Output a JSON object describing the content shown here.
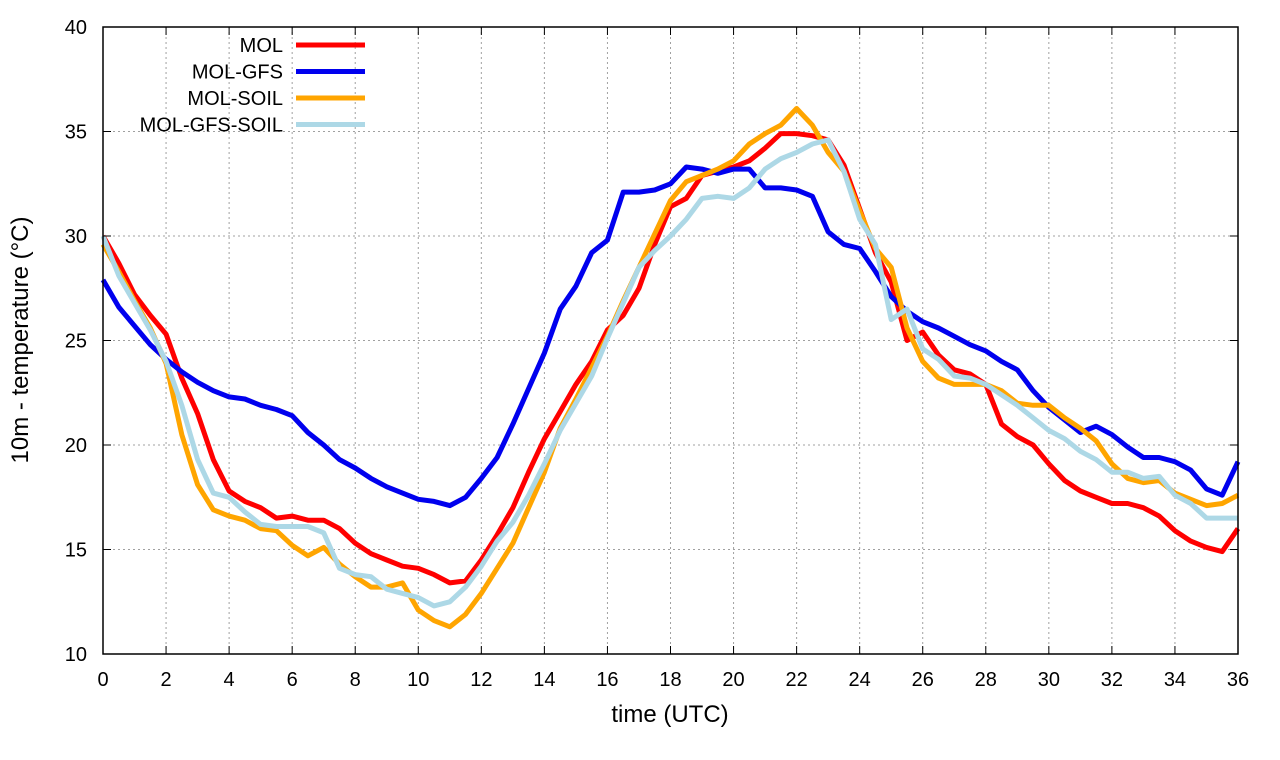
{
  "chart_data": {
    "type": "line",
    "xlabel": "time (UTC)",
    "ylabel": "10m - temperature (°C)",
    "xlim": [
      0,
      36
    ],
    "ylim": [
      10,
      40
    ],
    "xticks": [
      "0",
      "2",
      "4",
      "6",
      "8",
      "10",
      "12",
      "14",
      "16",
      "18",
      "20",
      "22",
      "24",
      "26",
      "28",
      "30",
      "32",
      "34",
      "36"
    ],
    "yticks": [
      "10",
      "15",
      "20",
      "25",
      "30",
      "35",
      "40"
    ],
    "grid": true,
    "legend_position": "top-left",
    "series": [
      {
        "name": "MOL",
        "color": "#ff0000",
        "x": [
          0,
          0.5,
          1,
          1.5,
          2,
          2.5,
          3,
          3.5,
          4,
          4.5,
          5,
          5.5,
          6,
          6.5,
          7,
          7.5,
          8,
          8.5,
          9,
          9.5,
          10,
          10.5,
          11,
          11.5,
          12,
          12.5,
          13,
          13.5,
          14,
          14.5,
          15,
          15.5,
          16,
          16.5,
          17,
          17.5,
          18,
          18.5,
          19,
          19.5,
          20,
          20.5,
          21,
          21.5,
          22,
          22.5,
          23,
          23.5,
          24,
          24.5,
          25,
          25.5,
          26,
          26.5,
          27,
          27.5,
          28,
          28.5,
          29,
          29.5,
          30,
          30.5,
          31,
          31.5,
          32,
          32.5,
          33,
          33.5,
          34,
          34.5,
          35,
          35.5,
          36
        ],
        "y": [
          30,
          28.7,
          27.2,
          26.2,
          25.3,
          23.2,
          21.5,
          19.3,
          17.8,
          17.3,
          17,
          16.5,
          16.6,
          16.4,
          16.4,
          16,
          15.3,
          14.8,
          14.5,
          14.2,
          14.1,
          13.8,
          13.4,
          13.5,
          14.5,
          15.7,
          17,
          18.7,
          20.3,
          21.6,
          22.9,
          24,
          25.5,
          26.2,
          27.5,
          29.6,
          31.4,
          31.8,
          32.9,
          33.1,
          33.3,
          33.6,
          34.2,
          34.9,
          34.9,
          34.8,
          34.6,
          33.4,
          31.3,
          29.2,
          27.8,
          25,
          25.4,
          24.3,
          23.6,
          23.4,
          22.9,
          21,
          20.4,
          20,
          19.1,
          18.3,
          17.8,
          17.5,
          17.2,
          17.2,
          17,
          16.6,
          15.9,
          15.4,
          15.1,
          14.9,
          16
        ]
      },
      {
        "name": "MOL-GFS",
        "color": "#0000ee",
        "x": [
          0,
          0.5,
          1,
          1.5,
          2,
          2.5,
          3,
          3.5,
          4,
          4.5,
          5,
          5.5,
          6,
          6.5,
          7,
          7.5,
          8,
          8.5,
          9,
          9.5,
          10,
          10.5,
          11,
          11.5,
          12,
          12.5,
          13,
          13.5,
          14,
          14.5,
          15,
          15.5,
          16,
          16.5,
          17,
          17.5,
          18,
          18.5,
          19,
          19.5,
          20,
          20.5,
          21,
          21.5,
          22,
          22.5,
          23,
          23.5,
          24,
          24.5,
          25,
          25.5,
          26,
          26.5,
          27,
          27.5,
          28,
          28.5,
          29,
          29.5,
          30,
          30.5,
          31,
          31.5,
          32,
          32.5,
          33,
          33.5,
          34,
          34.5,
          35,
          35.5,
          36
        ],
        "y": [
          27.9,
          26.6,
          25.7,
          24.8,
          24.1,
          23.5,
          23,
          22.6,
          22.3,
          22.2,
          21.9,
          21.7,
          21.4,
          20.6,
          20,
          19.3,
          18.9,
          18.4,
          18,
          17.7,
          17.4,
          17.3,
          17.1,
          17.5,
          18.4,
          19.4,
          21,
          22.7,
          24.4,
          26.5,
          27.6,
          29.2,
          29.8,
          32.1,
          32.1,
          32.2,
          32.5,
          33.3,
          33.2,
          33,
          33.2,
          33.2,
          32.3,
          32.3,
          32.2,
          31.9,
          30.2,
          29.6,
          29.4,
          28.3,
          27.1,
          26.4,
          25.9,
          25.6,
          25.2,
          24.8,
          24.5,
          24,
          23.6,
          22.6,
          21.8,
          21.2,
          20.6,
          20.9,
          20.5,
          19.9,
          19.4,
          19.4,
          19.2,
          18.8,
          17.9,
          17.6,
          19.2
        ]
      },
      {
        "name": "MOL-SOIL",
        "color": "#ffa500",
        "x": [
          0,
          0.5,
          1,
          1.5,
          2,
          2.5,
          3,
          3.5,
          4,
          4.5,
          5,
          5.5,
          6,
          6.5,
          7,
          7.5,
          8,
          8.5,
          9,
          9.5,
          10,
          10.5,
          11,
          11.5,
          12,
          12.5,
          13,
          13.5,
          14,
          14.5,
          15,
          15.5,
          16,
          16.5,
          17,
          17.5,
          18,
          18.5,
          19,
          19.5,
          20,
          20.5,
          21,
          21.5,
          22,
          22.5,
          23,
          23.5,
          24,
          24.5,
          25,
          25.5,
          26,
          26.5,
          27,
          27.5,
          28,
          28.5,
          29,
          29.5,
          30,
          30.5,
          31,
          31.5,
          32,
          32.5,
          33,
          33.5,
          34,
          34.5,
          35,
          35.5,
          36
        ],
        "y": [
          29.6,
          28.3,
          26.9,
          25.6,
          23.9,
          20.5,
          18.1,
          16.9,
          16.6,
          16.4,
          16,
          15.9,
          15.2,
          14.7,
          15.1,
          14.3,
          13.7,
          13.2,
          13.2,
          13.4,
          12.1,
          11.6,
          11.3,
          11.9,
          12.9,
          14.1,
          15.3,
          17,
          18.7,
          20.8,
          22.2,
          23.7,
          25.2,
          26.9,
          28.5,
          30.1,
          31.7,
          32.6,
          32.9,
          33.2,
          33.6,
          34.4,
          34.9,
          35.3,
          36.1,
          35.3,
          34,
          33.1,
          31.2,
          29.4,
          28.5,
          25.6,
          24,
          23.2,
          22.9,
          22.9,
          22.9,
          22.6,
          22,
          21.9,
          21.9,
          21.3,
          20.8,
          20.2,
          19.1,
          18.4,
          18.2,
          18.3,
          17.7,
          17.4,
          17.1,
          17.2,
          17.6
        ]
      },
      {
        "name": "MOL-GFS-SOIL",
        "color": "#add8e6",
        "x": [
          0,
          0.5,
          1,
          1.5,
          2,
          2.5,
          3,
          3.5,
          4,
          4.5,
          5,
          5.5,
          6,
          6.5,
          7,
          7.5,
          8,
          8.5,
          9,
          9.5,
          10,
          10.5,
          11,
          11.5,
          12,
          12.5,
          13,
          13.5,
          14,
          14.5,
          15,
          15.5,
          16,
          16.5,
          17,
          17.5,
          18,
          18.5,
          19,
          19.5,
          20,
          20.5,
          21,
          21.5,
          22,
          22.5,
          23,
          23.5,
          24,
          24.5,
          25,
          25.5,
          26,
          26.5,
          27,
          27.5,
          28,
          28.5,
          29,
          29.5,
          30,
          30.5,
          31,
          31.5,
          32,
          32.5,
          33,
          33.5,
          34,
          34.5,
          35,
          35.5,
          36
        ],
        "y": [
          30,
          28.1,
          26.8,
          25.5,
          24,
          21.9,
          19.3,
          17.7,
          17.5,
          16.8,
          16.2,
          16.1,
          16.1,
          16.1,
          15.8,
          14.1,
          13.8,
          13.7,
          13.1,
          12.9,
          12.7,
          12.3,
          12.5,
          13.2,
          14.2,
          15.4,
          16.3,
          17.6,
          19.1,
          20.7,
          22,
          23.3,
          25.1,
          26.8,
          28.5,
          29.3,
          30,
          30.8,
          31.8,
          31.9,
          31.8,
          32.3,
          33.2,
          33.7,
          34,
          34.4,
          34.6,
          33.1,
          30.8,
          29.6,
          26,
          26.5,
          24.6,
          24.1,
          23.3,
          23.2,
          22.9,
          22.4,
          21.9,
          21.3,
          20.7,
          20.3,
          19.7,
          19.3,
          18.7,
          18.7,
          18.4,
          18.5,
          17.6,
          17.2,
          16.5,
          16.5,
          16.5
        ]
      }
    ]
  }
}
